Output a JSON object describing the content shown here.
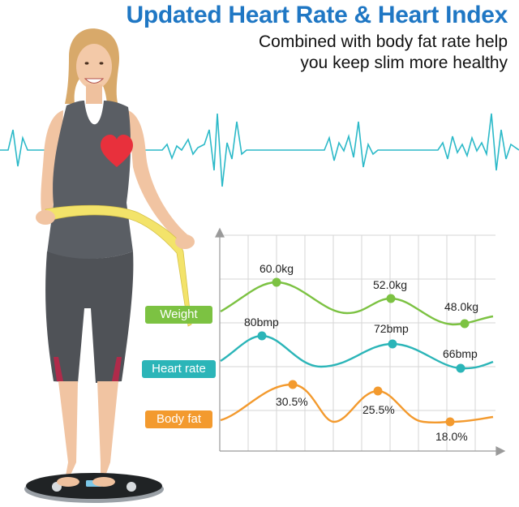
{
  "header": {
    "title": "Updated Heart Rate & Heart Index",
    "subtitle_line1": "Combined with body fat rate help",
    "subtitle_line2": "you keep slim more healthy"
  },
  "colors": {
    "title": "#1f77c4",
    "ecg": "#2bb9c8",
    "weight": "#7cc242",
    "heart_rate": "#2bb5b8",
    "body_fat": "#f39a2e",
    "heart_icon": "#e8303c"
  },
  "legend": {
    "weight": "Weight",
    "heart_rate": "Heart rate",
    "body_fat": "Body fat"
  },
  "chart_data": {
    "type": "line",
    "title": "",
    "xlabel": "",
    "ylabel": "",
    "series": [
      {
        "name": "Weight",
        "key": "weight",
        "values": [
          "60.0kg",
          "52.0kg",
          "48.0kg"
        ]
      },
      {
        "name": "Heart rate",
        "key": "heart_rate",
        "values": [
          "80bmp",
          "72bmp",
          "66bmp"
        ]
      },
      {
        "name": "Body fat",
        "key": "body_fat",
        "values": [
          "30.5%",
          "25.5%",
          "18.0%"
        ]
      }
    ]
  }
}
